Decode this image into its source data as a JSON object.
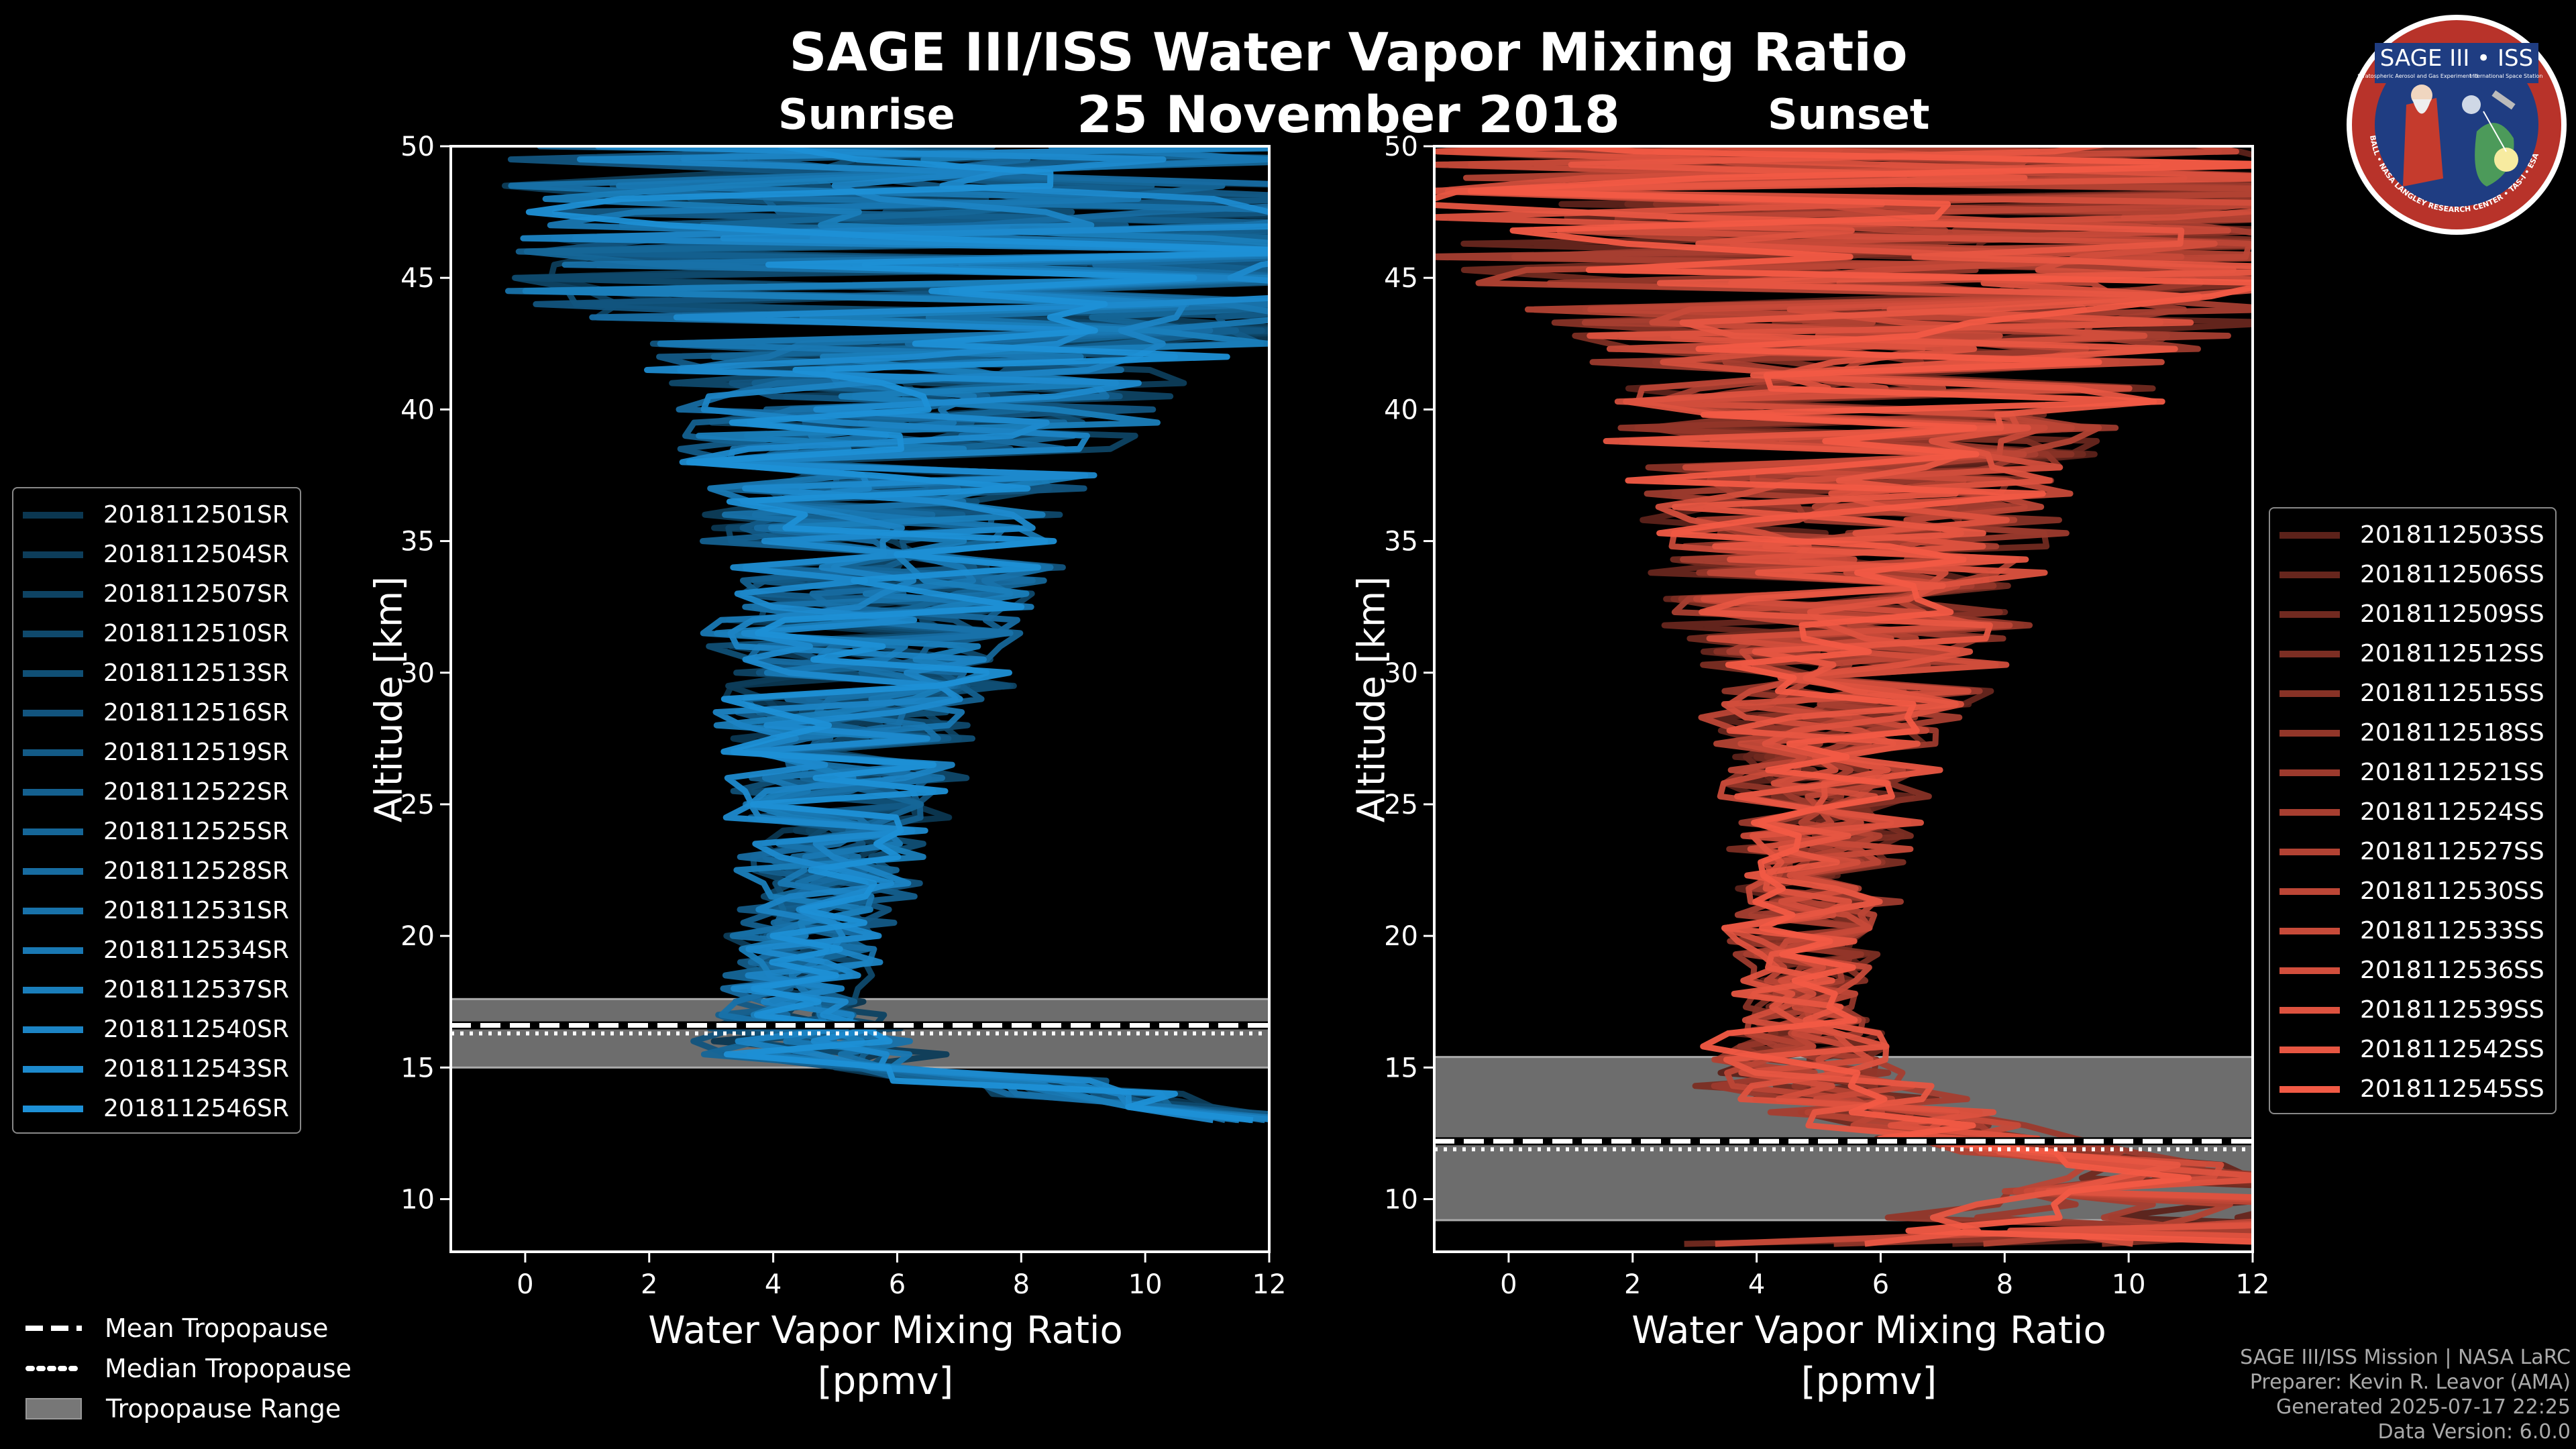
{
  "title": "SAGE III/ISS Water Vapor Mixing Ratio",
  "date": "25 November 2018",
  "panels": {
    "sunrise": {
      "label": "Sunrise",
      "color": "#1e90d6",
      "ylabel": "Altitude [km]",
      "xlabel_line1": "Water Vapor Mixing Ratio",
      "xlabel_line2": "[ppmv]",
      "legend": [
        "2018112501SR",
        "2018112504SR",
        "2018112507SR",
        "2018112510SR",
        "2018112513SR",
        "2018112516SR",
        "2018112519SR",
        "2018112522SR",
        "2018112525SR",
        "2018112528SR",
        "2018112531SR",
        "2018112534SR",
        "2018112537SR",
        "2018112540SR",
        "2018112543SR",
        "2018112546SR"
      ]
    },
    "sunset": {
      "label": "Sunset",
      "color": "#f25a45",
      "ylabel": "Altitude [km]",
      "xlabel_line1": "Water Vapor Mixing Ratio",
      "xlabel_line2": "[ppmv]",
      "legend": [
        "2018112503SS",
        "2018112506SS",
        "2018112509SS",
        "2018112512SS",
        "2018112515SS",
        "2018112518SS",
        "2018112521SS",
        "2018112524SS",
        "2018112527SS",
        "2018112530SS",
        "2018112533SS",
        "2018112536SS",
        "2018112539SS",
        "2018112542SS",
        "2018112545SS"
      ]
    }
  },
  "tropopause_legend": {
    "mean": "Mean Tropopause",
    "median": "Median Tropopause",
    "range": "Tropopause Range"
  },
  "credits": {
    "line1": "SAGE III/ISS Mission | NASA LaRC",
    "line2": "Preparer: Kevin R. Leavor (AMA)",
    "line3": "Generated 2025-07-17 22:25",
    "line4": "Data Version: 6.0.0"
  },
  "logo": {
    "title": "SAGE III • ISS",
    "subtitle_left": "Stratospheric Aerosol and Gas Experiment III",
    "subtitle_right": "International Space Station",
    "ring_text": "BALL • NASA LANGLEY RESEARCH CENTER • TAS-I • ESA"
  },
  "chart_data": [
    {
      "type": "line",
      "title": "Sunrise",
      "xlabel": "Water Vapor Mixing Ratio [ppmv]",
      "ylabel": "Altitude [km]",
      "xlim": [
        -1.2,
        12
      ],
      "ylim": [
        8,
        50
      ],
      "xticks": [
        0,
        2,
        4,
        6,
        8,
        10,
        12
      ],
      "yticks": [
        10,
        15,
        20,
        25,
        30,
        35,
        40,
        45,
        50
      ],
      "profile_count": 16,
      "median_profile": {
        "altitude": [
          13,
          14,
          15,
          15.5,
          16,
          17,
          18,
          20,
          22,
          25,
          28,
          30,
          33,
          36,
          38,
          40,
          42,
          43,
          45,
          48,
          50
        ],
        "wvmr": [
          12,
          9,
          6,
          4.8,
          4.5,
          4.4,
          4.4,
          4.6,
          4.8,
          5.0,
          5.2,
          5.4,
          5.6,
          5.8,
          6.0,
          6.3,
          6.5,
          7,
          7,
          7,
          7
        ]
      },
      "spread": {
        "altitude": [
          13,
          15,
          16,
          18,
          20,
          23,
          25,
          28,
          30,
          33,
          36,
          38,
          40,
          42,
          43,
          45,
          50
        ],
        "half_width": [
          1.0,
          1.8,
          1.4,
          0.9,
          1.0,
          1.2,
          1.5,
          1.8,
          2.1,
          2.4,
          2.7,
          3.0,
          3.5,
          4.0,
          6,
          6.5,
          6.5
        ]
      },
      "tropopause": {
        "mean": 16.6,
        "median": 16.6,
        "range": [
          15.0,
          17.6
        ]
      }
    },
    {
      "type": "line",
      "title": "Sunset",
      "xlabel": "Water Vapor Mixing Ratio [ppmv]",
      "ylabel": "Altitude [km]",
      "xlim": [
        -1.2,
        12
      ],
      "ylim": [
        8,
        50
      ],
      "xticks": [
        0,
        2,
        4,
        6,
        8,
        10,
        12
      ],
      "yticks": [
        10,
        15,
        20,
        25,
        30,
        35,
        40,
        45,
        50
      ],
      "profile_count": 15,
      "median_profile": {
        "altitude": [
          8.3,
          9,
          11,
          12,
          13,
          14,
          14.5,
          15,
          16,
          18,
          20,
          22,
          25,
          28,
          30,
          33,
          36,
          38,
          40,
          42,
          43,
          45,
          50
        ],
        "wvmr": [
          12,
          12,
          11,
          8,
          6.5,
          5.2,
          4.8,
          5.0,
          4.8,
          4.8,
          4.8,
          5.0,
          5.1,
          5.3,
          5.4,
          5.5,
          5.6,
          5.8,
          6.0,
          6.2,
          6.5,
          6.5,
          6.5
        ]
      },
      "spread": {
        "altitude": [
          8.3,
          11,
          13,
          15,
          17,
          20,
          23,
          25,
          28,
          30,
          33,
          36,
          38,
          40,
          42,
          45,
          50
        ],
        "half_width": [
          8,
          1.2,
          1.5,
          1.6,
          0.8,
          1.0,
          1.2,
          1.4,
          1.8,
          2.2,
          2.6,
          3.0,
          3.4,
          3.8,
          4.5,
          7,
          7
        ]
      },
      "tropopause": {
        "mean": 12.2,
        "median": 12.2,
        "range": [
          9.2,
          15.4
        ]
      }
    }
  ]
}
